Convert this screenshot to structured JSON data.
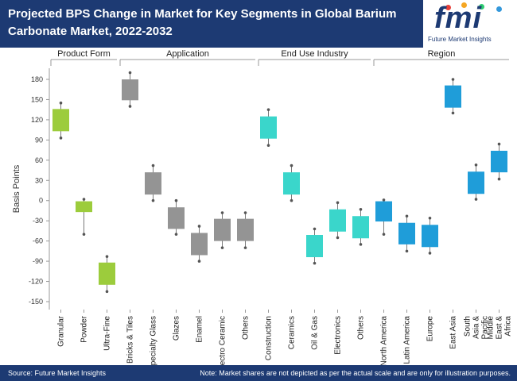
{
  "header": {
    "title": "Projected BPS Change in Market for Key Segments in Global Barium Carbonate Market, 2022-2032"
  },
  "logo": {
    "text": "fmi",
    "subtitle": "Future Market Insights",
    "dot_colors": [
      "#e8403a",
      "#f5a623",
      "#2ecc71",
      "#3498db"
    ]
  },
  "footer": {
    "source": "Source: Future Market Insights",
    "note": "Note: Market shares are not depicted as per the actual scale and are only for illustration purposes."
  },
  "colors": {
    "header_bg": "#1d3a73",
    "product_form": "#9ccc3c",
    "application": "#949494",
    "end_use": "#3ad6cb",
    "region": "#1f9dd9",
    "whisker": "#7a7a7a"
  },
  "chart_data": {
    "type": "box",
    "ylabel": "Basis Points",
    "ylim": [
      -150,
      180
    ],
    "yticks": [
      180,
      150,
      120,
      90,
      60,
      30,
      0,
      -30,
      -60,
      -90,
      -120,
      -150
    ],
    "groups": [
      {
        "name": "Product Form",
        "color": "#9ccc3c",
        "categories": [
          {
            "label": "Granular",
            "low": 93,
            "q1": 103,
            "q3": 136,
            "high": 145
          },
          {
            "label": "Powder",
            "low": -50,
            "q1": -17,
            "q3": -1,
            "high": 2
          },
          {
            "label": "Ultra-Fine",
            "low": -135,
            "q1": -125,
            "q3": -92,
            "high": -83
          }
        ]
      },
      {
        "name": "Application",
        "color": "#949494",
        "categories": [
          {
            "label": "Bricks & Tiles",
            "low": 140,
            "q1": 149,
            "q3": 180,
            "high": 190
          },
          {
            "label": "Specialty Glass",
            "low": 0,
            "q1": 9,
            "q3": 42,
            "high": 52
          },
          {
            "label": "Glazes",
            "low": -50,
            "q1": -42,
            "q3": -10,
            "high": 0
          },
          {
            "label": "Enamel",
            "low": -90,
            "q1": -81,
            "q3": -48,
            "high": -38
          },
          {
            "label": "Electro Ceramic",
            "low": -70,
            "q1": -60,
            "q3": -27,
            "high": -18
          },
          {
            "label": "Others",
            "low": -70,
            "q1": -60,
            "q3": -27,
            "high": -18
          }
        ]
      },
      {
        "name": "End Use Industry",
        "color": "#3ad6cb",
        "categories": [
          {
            "label": "Construction",
            "low": 82,
            "q1": 92,
            "q3": 125,
            "high": 135
          },
          {
            "label": "Ceramics",
            "low": 0,
            "q1": 9,
            "q3": 42,
            "high": 52
          },
          {
            "label": "Oil & Gas",
            "low": -93,
            "q1": -84,
            "q3": -51,
            "high": -42
          },
          {
            "label": "Electronics",
            "low": -55,
            "q1": -46,
            "q3": -13,
            "high": -3
          },
          {
            "label": "Others",
            "low": -65,
            "q1": -56,
            "q3": -23,
            "high": -13
          }
        ]
      },
      {
        "name": "Region",
        "color": "#1f9dd9",
        "categories": [
          {
            "label": "North America",
            "low": -50,
            "q1": -31,
            "q3": -1,
            "high": 1
          },
          {
            "label": "Latin America",
            "low": -75,
            "q1": -65,
            "q3": -33,
            "high": -23
          },
          {
            "label": "Europe",
            "low": -78,
            "q1": -69,
            "q3": -36,
            "high": -26
          },
          {
            "label": "East Asia",
            "low": 130,
            "q1": 138,
            "q3": 171,
            "high": 180
          },
          {
            "label": "South Asia & Pacific",
            "low": 2,
            "q1": 10,
            "q3": 43,
            "high": 53
          },
          {
            "label": "Middle East & Africa",
            "low": 32,
            "q1": 42,
            "q3": 74,
            "high": 84
          }
        ]
      }
    ]
  }
}
